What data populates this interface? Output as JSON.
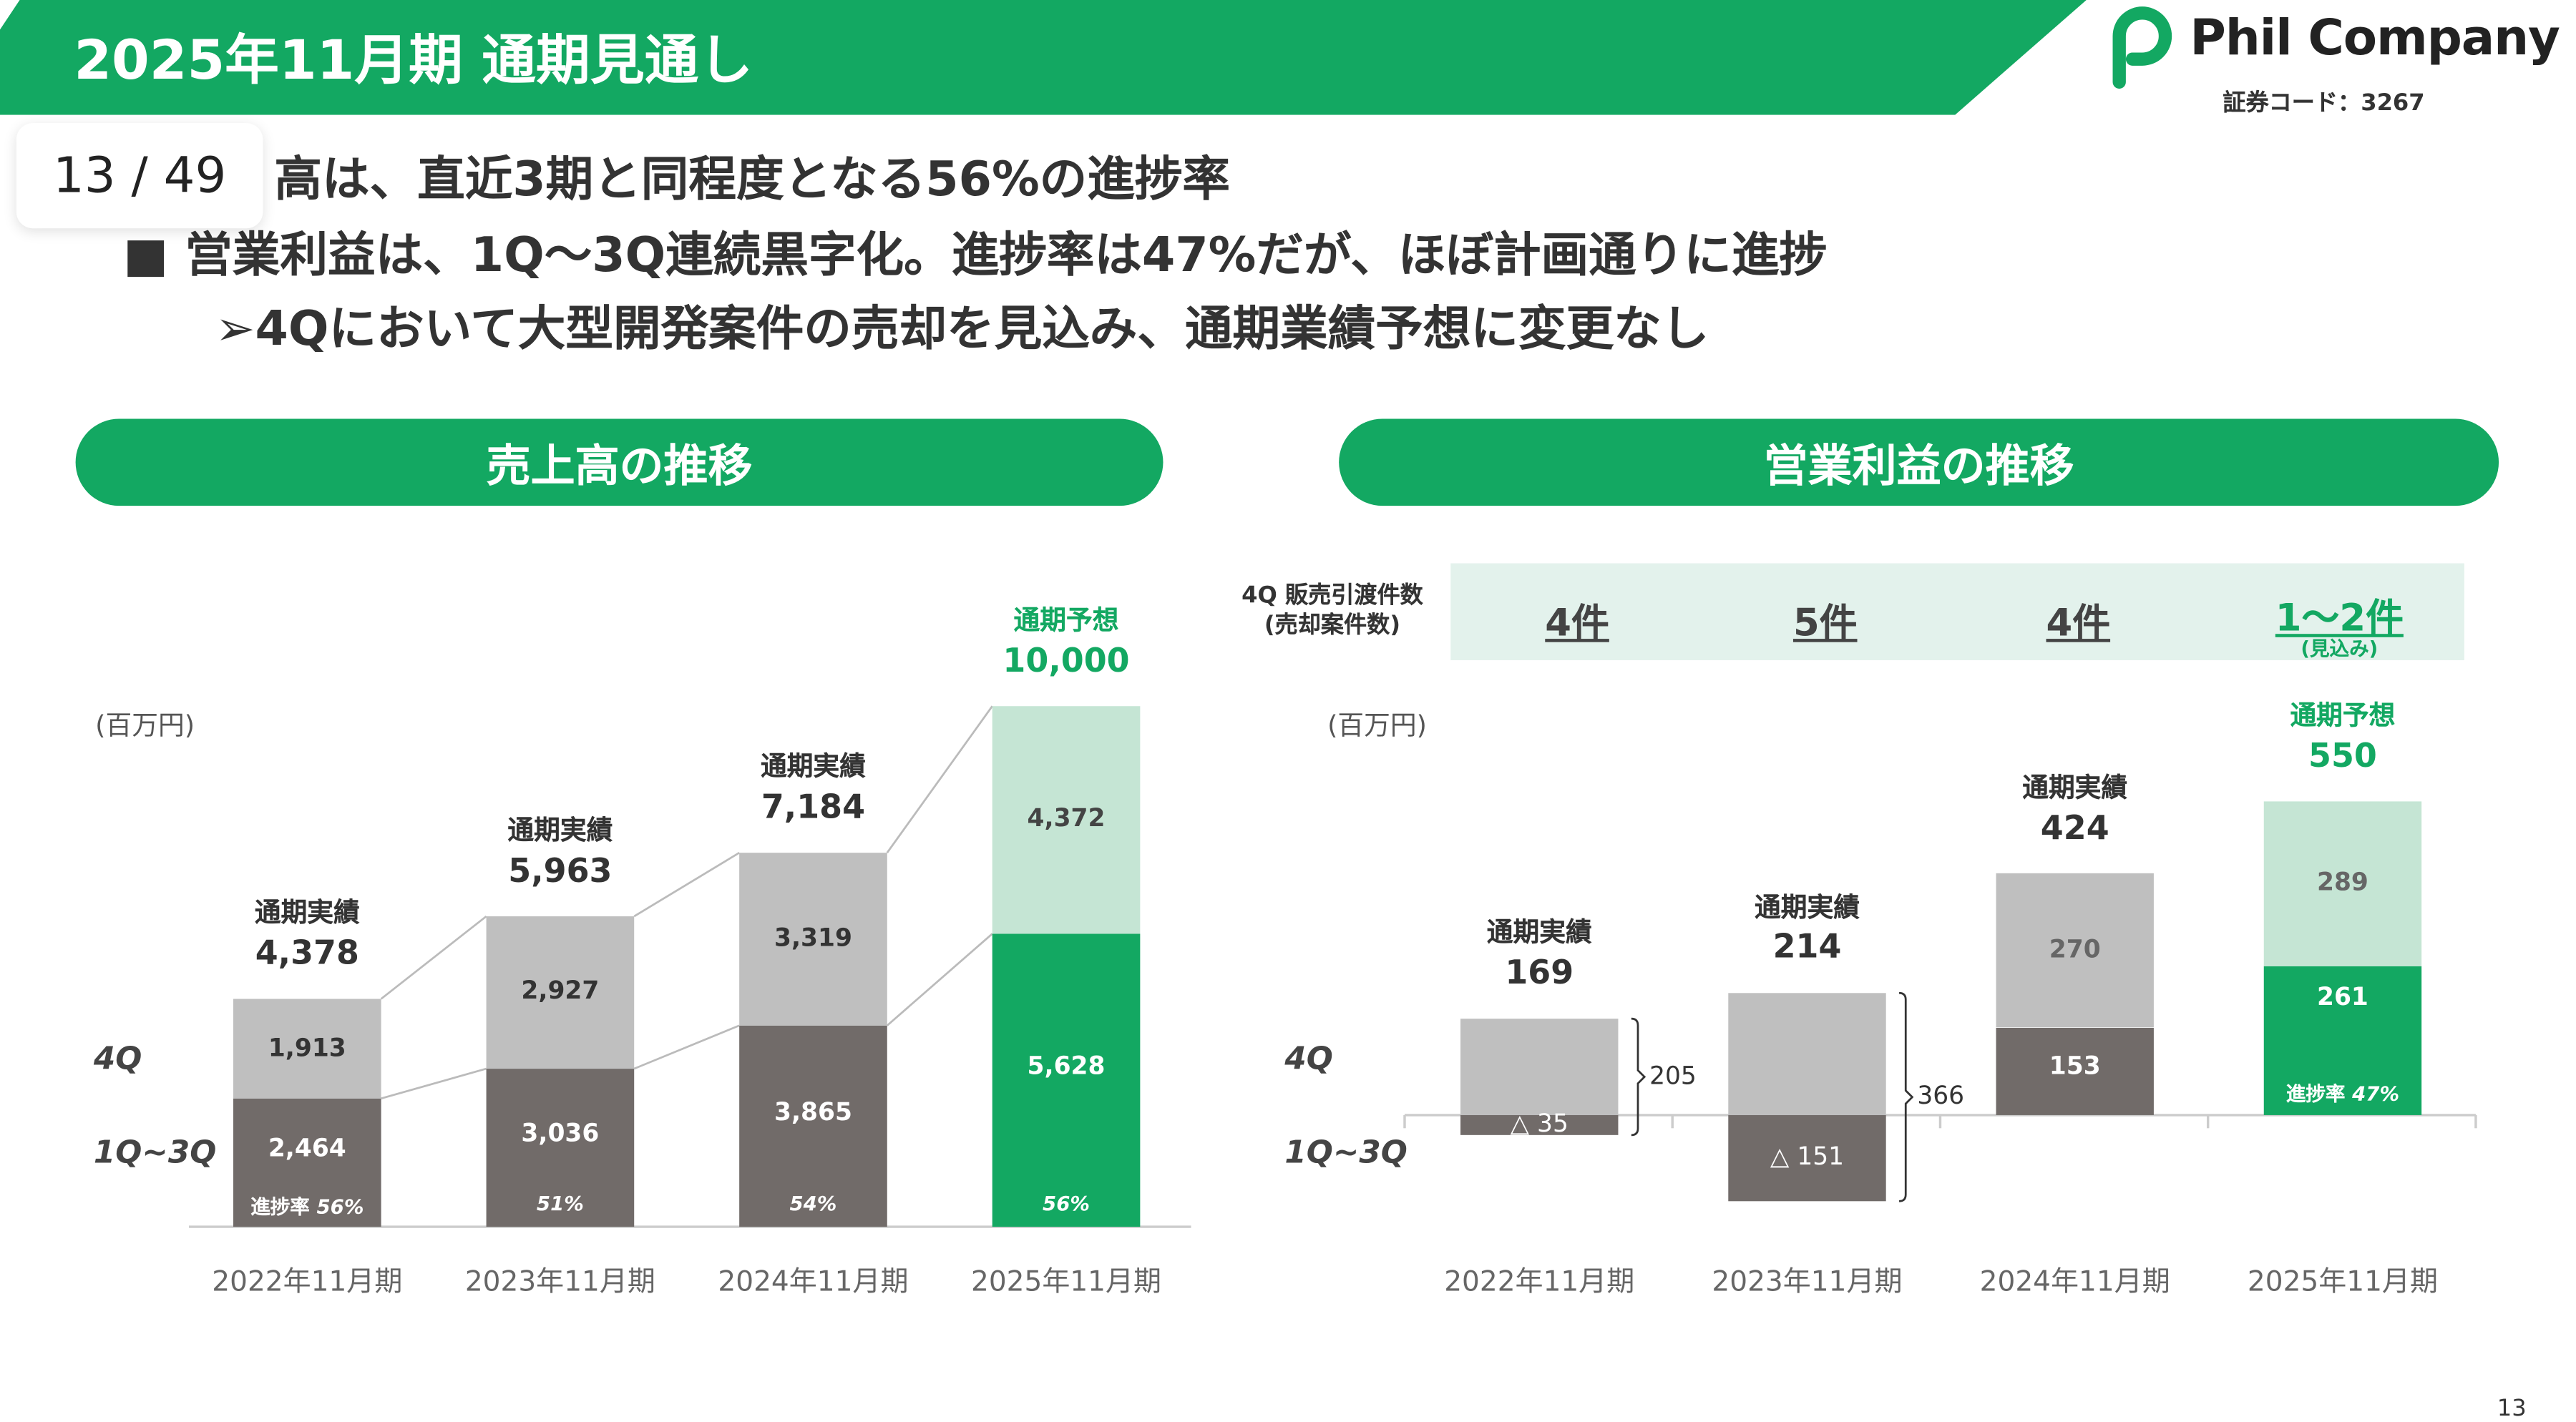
{
  "header": {
    "title": "2025年11月期 通期見通し",
    "logo_name": "Phil Company",
    "stock_code": "証券コード：3267"
  },
  "pager": {
    "label": "13 / 49"
  },
  "bullets": [
    "高は、直近3期と同程度となる56%の進捗率",
    "■ 営業利益は、1Q～3Q連続黒字化。進捗率は47%だが、ほぼ計画通りに進捗",
    "➢4Qにおいて大型開発案件の売却を見込み、通期業績予想に変更なし"
  ],
  "page_number": "13",
  "colors": {
    "brand": "#13a862",
    "dark": "#716b69",
    "light": "#bfbfbf",
    "forecast_light": "#c5e5d4",
    "band": "#e3f2ec"
  },
  "sales_panel": {
    "title": "売上高の推移"
  },
  "op_panel": {
    "title": "営業利益の推移"
  },
  "deliveries": {
    "label_1": "4Q 販売引渡件数",
    "label_2": "(売却案件数)",
    "values": [
      "4件",
      "5件",
      "4件",
      "1～2件"
    ],
    "note": "(見込み)"
  },
  "chart_data": [
    {
      "type": "bar",
      "stacked": true,
      "unit": "(百万円)",
      "categories": [
        "2022年11月期",
        "2023年11月期",
        "2024年11月期",
        "2025年11月期"
      ],
      "row_labels": {
        "q4": "4Q",
        "q13": "1Q~3Q"
      },
      "series": [
        {
          "name": "1Q~3Q",
          "values": [
            2464,
            3036,
            3865,
            5628
          ]
        },
        {
          "name": "4Q",
          "values": [
            1913,
            2927,
            3319,
            4372
          ]
        }
      ],
      "totals": [
        4378,
        5963,
        7184,
        10000
      ],
      "total_labels": [
        "4,378",
        "5,963",
        "7,184",
        "10,000"
      ],
      "segment_labels": {
        "q13": [
          "2,464",
          "3,036",
          "3,865",
          "5,628"
        ],
        "q4": [
          "1,913",
          "2,927",
          "3,319",
          "4,372"
        ]
      },
      "total_captions": [
        "通期実績",
        "通期実績",
        "通期実績",
        "通期予想"
      ],
      "progress_caption": "進捗率",
      "progress": [
        "56%",
        "51%",
        "54%",
        "56%"
      ],
      "ylim": [
        0,
        10000
      ]
    },
    {
      "type": "bar",
      "stacked": true,
      "unit": "(百万円)",
      "categories": [
        "2022年11月期",
        "2023年11月期",
        "2024年11月期",
        "2025年11月期"
      ],
      "row_labels": {
        "q4": "4Q",
        "q13": "1Q~3Q"
      },
      "series": [
        {
          "name": "1Q~3Q",
          "values": [
            -35,
            -151,
            153,
            261
          ]
        },
        {
          "name": "4Q",
          "values": [
            205,
            366,
            270,
            289
          ]
        }
      ],
      "totals": [
        169,
        214,
        424,
        550
      ],
      "total_labels": [
        "169",
        "214",
        "424",
        "550"
      ],
      "segment_labels": {
        "q13": [
          "△ 35",
          "△ 151",
          "153",
          "261"
        ],
        "q4": [
          "205",
          "366",
          "270",
          "289"
        ]
      },
      "total_captions": [
        "通期実績",
        "通期実績",
        "通期実績",
        "通期予想"
      ],
      "progress_caption": "進捗率",
      "progress": [
        "",
        "",
        "",
        "47%"
      ],
      "ylim": [
        -151,
        550
      ]
    }
  ]
}
